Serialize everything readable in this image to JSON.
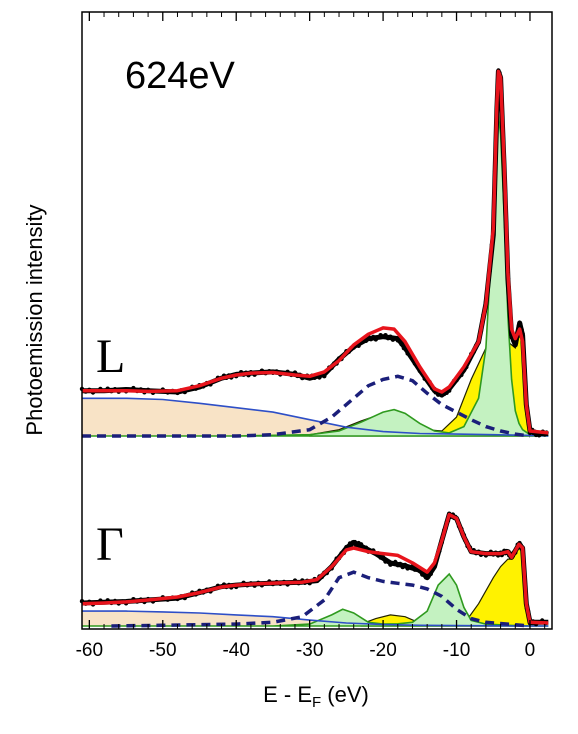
{
  "chart_data": {
    "type": "line",
    "title": "",
    "xlabel_main": "E - E",
    "xlabel_sub": "F",
    "xlabel_unit": " (eV)",
    "ylabel": "Photoemission intensity",
    "annotation": "624eV",
    "xlim": [
      -61,
      3
    ],
    "xticks": [
      -60,
      -50,
      -40,
      -30,
      -20,
      -10,
      0
    ],
    "xtick_labels": [
      "-60",
      "-50",
      "-40",
      "-30",
      "-20",
      "-10",
      "0"
    ],
    "grid": false,
    "colors": {
      "fit": "#e8141c",
      "data": "#000000",
      "dashed": "#1b1f7a",
      "background": "#2e4fc7",
      "background_fill": "#f8e3c6",
      "green_line": "#2f9a1f",
      "green_fill": "#c4f2c1",
      "yellow_fill": "#fff200",
      "yellow_line": "#222200"
    },
    "panels": [
      {
        "label": "L",
        "ylim": [
          0,
          6.3
        ],
        "data": [
          [
            -61,
            0.72
          ],
          [
            -58,
            0.72
          ],
          [
            -55,
            0.74
          ],
          [
            -52,
            0.72
          ],
          [
            -48,
            0.7
          ],
          [
            -45,
            0.78
          ],
          [
            -42,
            0.92
          ],
          [
            -40,
            0.98
          ],
          [
            -38,
            1.0
          ],
          [
            -35,
            1.02
          ],
          [
            -32,
            0.98
          ],
          [
            -30,
            0.92
          ],
          [
            -28,
            0.98
          ],
          [
            -26,
            1.22
          ],
          [
            -24,
            1.42
          ],
          [
            -22,
            1.55
          ],
          [
            -20,
            1.58
          ],
          [
            -18,
            1.55
          ],
          [
            -17,
            1.4
          ],
          [
            -15,
            1.05
          ],
          [
            -13,
            0.72
          ],
          [
            -12,
            0.65
          ],
          [
            -11,
            0.75
          ],
          [
            -9,
            1.05
          ],
          [
            -7,
            1.5
          ],
          [
            -6,
            2.1
          ],
          [
            -5,
            3.2
          ],
          [
            -4.5,
            5.2
          ],
          [
            -4.3,
            5.8
          ],
          [
            -4,
            5.7
          ],
          [
            -3.5,
            4.2
          ],
          [
            -3,
            2.5
          ],
          [
            -2.5,
            1.6
          ],
          [
            -2,
            1.45
          ],
          [
            -1.4,
            1.8
          ],
          [
            -1,
            1.6
          ],
          [
            -0.5,
            0.5
          ],
          [
            0,
            0.08
          ],
          [
            1,
            0.04
          ],
          [
            2.5,
            0.04
          ]
        ],
        "fit": [
          [
            -61,
            0.72
          ],
          [
            -58,
            0.72
          ],
          [
            -55,
            0.72
          ],
          [
            -52,
            0.71
          ],
          [
            -48,
            0.72
          ],
          [
            -45,
            0.8
          ],
          [
            -42,
            0.92
          ],
          [
            -40,
            0.97
          ],
          [
            -38,
            1.0
          ],
          [
            -35,
            1.01
          ],
          [
            -32,
            0.97
          ],
          [
            -30,
            0.95
          ],
          [
            -28,
            1.02
          ],
          [
            -26,
            1.2
          ],
          [
            -24,
            1.45
          ],
          [
            -22,
            1.62
          ],
          [
            -20,
            1.72
          ],
          [
            -18.5,
            1.7
          ],
          [
            -17,
            1.5
          ],
          [
            -15,
            1.1
          ],
          [
            -13,
            0.75
          ],
          [
            -12,
            0.7
          ],
          [
            -11,
            0.78
          ],
          [
            -9,
            1.1
          ],
          [
            -7,
            1.5
          ],
          [
            -6,
            2.1
          ],
          [
            -5,
            3.3
          ],
          [
            -4.5,
            5.3
          ],
          [
            -4.3,
            5.8
          ],
          [
            -4,
            5.7
          ],
          [
            -3.5,
            4.3
          ],
          [
            -3,
            2.6
          ],
          [
            -2.5,
            1.7
          ],
          [
            -2,
            1.55
          ],
          [
            -1.4,
            1.7
          ],
          [
            -1,
            1.5
          ],
          [
            -0.5,
            0.5
          ],
          [
            0,
            0.08
          ],
          [
            2.5,
            0.05
          ]
        ],
        "background": [
          [
            -61,
            0.6
          ],
          [
            -55,
            0.6
          ],
          [
            -50,
            0.58
          ],
          [
            -45,
            0.52
          ],
          [
            -40,
            0.45
          ],
          [
            -35,
            0.38
          ],
          [
            -30,
            0.26
          ],
          [
            -25,
            0.14
          ],
          [
            -20,
            0.07
          ],
          [
            -15,
            0.04
          ],
          [
            -10,
            0.03
          ],
          [
            -5,
            0.02
          ],
          [
            0,
            0.01
          ],
          [
            2.5,
            0.0
          ]
        ],
        "dashed": [
          [
            -61,
            0.0
          ],
          [
            -50,
            0.0
          ],
          [
            -40,
            0.0
          ],
          [
            -35,
            0.02
          ],
          [
            -30,
            0.1
          ],
          [
            -27,
            0.3
          ],
          [
            -24,
            0.6
          ],
          [
            -22,
            0.8
          ],
          [
            -20,
            0.9
          ],
          [
            -18,
            0.95
          ],
          [
            -16,
            0.88
          ],
          [
            -14,
            0.68
          ],
          [
            -12,
            0.5
          ],
          [
            -10,
            0.38
          ],
          [
            -8,
            0.26
          ],
          [
            -6,
            0.15
          ],
          [
            -4,
            0.08
          ],
          [
            -2,
            0.03
          ],
          [
            0,
            0.0
          ]
        ],
        "green": [
          [
            -61,
            0.0
          ],
          [
            -40,
            0.0
          ],
          [
            -30,
            0.02
          ],
          [
            -26,
            0.08
          ],
          [
            -23,
            0.22
          ],
          [
            -20,
            0.38
          ],
          [
            -18.5,
            0.42
          ],
          [
            -17,
            0.36
          ],
          [
            -15,
            0.2
          ],
          [
            -13,
            0.08
          ],
          [
            -11,
            0.05
          ],
          [
            -9,
            0.15
          ],
          [
            -7,
            0.6
          ],
          [
            -6,
            1.4
          ],
          [
            -5,
            3.5
          ],
          [
            -4.4,
            5.2
          ],
          [
            -4,
            4.8
          ],
          [
            -3.5,
            3.5
          ],
          [
            -3,
            1.9
          ],
          [
            -2.5,
            0.9
          ],
          [
            -2,
            0.4
          ],
          [
            -1.5,
            0.2
          ],
          [
            -1,
            0.1
          ],
          [
            0,
            0.02
          ],
          [
            2.5,
            0.0
          ]
        ],
        "yellow": [
          [
            -30,
            0.02
          ],
          [
            -26,
            0.1
          ],
          [
            -23,
            0.24
          ],
          [
            -20,
            0.36
          ],
          [
            -18,
            0.34
          ],
          [
            -16,
            0.22
          ],
          [
            -14,
            0.1
          ],
          [
            -12,
            0.08
          ],
          [
            -10,
            0.3
          ],
          [
            -8,
            0.9
          ],
          [
            -6,
            1.4
          ],
          [
            -5,
            1.6
          ],
          [
            -4,
            1.6
          ],
          [
            -3,
            1.5
          ],
          [
            -2,
            1.4
          ],
          [
            -1.5,
            1.6
          ],
          [
            -1,
            1.5
          ],
          [
            -0.5,
            0.5
          ],
          [
            0,
            0.05
          ],
          [
            1,
            0.0
          ]
        ]
      },
      {
        "label": "Γ",
        "ylim": [
          0,
          4.9
        ],
        "data": [
          [
            -61,
            0.62
          ],
          [
            -58,
            0.64
          ],
          [
            -55,
            0.66
          ],
          [
            -52,
            0.7
          ],
          [
            -48,
            0.75
          ],
          [
            -45,
            0.9
          ],
          [
            -42,
            1.06
          ],
          [
            -40,
            1.1
          ],
          [
            -37,
            1.14
          ],
          [
            -34,
            1.16
          ],
          [
            -31,
            1.18
          ],
          [
            -29,
            1.22
          ],
          [
            -27,
            1.6
          ],
          [
            -25,
            2.1
          ],
          [
            -24,
            2.25
          ],
          [
            -23,
            2.15
          ],
          [
            -21,
            1.95
          ],
          [
            -19,
            1.7
          ],
          [
            -17,
            1.62
          ],
          [
            -15,
            1.5
          ],
          [
            -14,
            1.3
          ],
          [
            -13,
            1.6
          ],
          [
            -12,
            2.3
          ],
          [
            -11,
            3.0
          ],
          [
            -10,
            2.9
          ],
          [
            -9,
            2.4
          ],
          [
            -8,
            2.0
          ],
          [
            -6,
            1.95
          ],
          [
            -4,
            1.95
          ],
          [
            -3,
            2.0
          ],
          [
            -2.5,
            1.85
          ],
          [
            -1.5,
            2.2
          ],
          [
            -1,
            2.1
          ],
          [
            -0.5,
            0.6
          ],
          [
            0,
            0.1
          ],
          [
            2.5,
            0.1
          ]
        ],
        "fit": [
          [
            -61,
            0.6
          ],
          [
            -58,
            0.62
          ],
          [
            -55,
            0.65
          ],
          [
            -52,
            0.7
          ],
          [
            -48,
            0.78
          ],
          [
            -45,
            0.9
          ],
          [
            -42,
            1.05
          ],
          [
            -40,
            1.1
          ],
          [
            -37,
            1.14
          ],
          [
            -34,
            1.16
          ],
          [
            -31,
            1.18
          ],
          [
            -29,
            1.25
          ],
          [
            -27,
            1.6
          ],
          [
            -25,
            2.05
          ],
          [
            -24,
            2.1
          ],
          [
            -22,
            2.0
          ],
          [
            -20,
            1.95
          ],
          [
            -18,
            1.9
          ],
          [
            -16,
            1.7
          ],
          [
            -14,
            1.45
          ],
          [
            -13,
            1.7
          ],
          [
            -12,
            2.3
          ],
          [
            -11,
            3.0
          ],
          [
            -10,
            2.9
          ],
          [
            -9,
            2.4
          ],
          [
            -8,
            2.0
          ],
          [
            -6,
            1.95
          ],
          [
            -4,
            1.95
          ],
          [
            -3,
            2.0
          ],
          [
            -2.5,
            1.85
          ],
          [
            -1.5,
            2.2
          ],
          [
            -1,
            2.1
          ],
          [
            -0.5,
            0.6
          ],
          [
            0,
            0.1
          ],
          [
            2.5,
            0.08
          ]
        ],
        "background": [
          [
            -61,
            0.4
          ],
          [
            -55,
            0.4
          ],
          [
            -50,
            0.38
          ],
          [
            -45,
            0.35
          ],
          [
            -40,
            0.3
          ],
          [
            -35,
            0.25
          ],
          [
            -30,
            0.16
          ],
          [
            -25,
            0.08
          ],
          [
            -20,
            0.04
          ],
          [
            -15,
            0.02
          ],
          [
            -10,
            0.01
          ],
          [
            0,
            0.0
          ],
          [
            2.5,
            0.0
          ]
        ],
        "dashed": [
          [
            -57,
            0.0
          ],
          [
            -50,
            0.02
          ],
          [
            -40,
            0.05
          ],
          [
            -35,
            0.1
          ],
          [
            -31,
            0.25
          ],
          [
            -28,
            0.7
          ],
          [
            -26,
            1.3
          ],
          [
            -24,
            1.45
          ],
          [
            -22,
            1.3
          ],
          [
            -20,
            1.2
          ],
          [
            -18,
            1.15
          ],
          [
            -16,
            1.1
          ],
          [
            -14,
            1.0
          ],
          [
            -12,
            0.8
          ],
          [
            -10,
            0.45
          ],
          [
            -8,
            0.2
          ],
          [
            -6,
            0.1
          ],
          [
            -3,
            0.05
          ],
          [
            0,
            0.0
          ]
        ],
        "green": [
          [
            -61,
            0.0
          ],
          [
            -35,
            0.0
          ],
          [
            -30,
            0.05
          ],
          [
            -27,
            0.3
          ],
          [
            -25.5,
            0.45
          ],
          [
            -24,
            0.35
          ],
          [
            -22,
            0.1
          ],
          [
            -20,
            0.05
          ],
          [
            -18,
            0.06
          ],
          [
            -16,
            0.1
          ],
          [
            -14,
            0.4
          ],
          [
            -12.5,
            1.1
          ],
          [
            -11,
            1.4
          ],
          [
            -10,
            1.1
          ],
          [
            -9,
            0.5
          ],
          [
            -8,
            0.15
          ],
          [
            -6,
            0.05
          ],
          [
            -3,
            0.02
          ],
          [
            0,
            0.0
          ],
          [
            2.5,
            0.0
          ]
        ],
        "yellow": [
          [
            -23,
            0.05
          ],
          [
            -21,
            0.2
          ],
          [
            -19,
            0.3
          ],
          [
            -17,
            0.25
          ],
          [
            -15,
            0.08
          ],
          [
            -13,
            0.02
          ],
          [
            -9,
            0.05
          ],
          [
            -7,
            0.6
          ],
          [
            -5,
            1.3
          ],
          [
            -4,
            1.6
          ],
          [
            -3,
            1.8
          ],
          [
            -2.5,
            1.8
          ],
          [
            -1.5,
            2.1
          ],
          [
            -1,
            2.0
          ],
          [
            -0.5,
            0.6
          ],
          [
            0,
            0.05
          ],
          [
            1,
            0.0
          ]
        ]
      }
    ]
  }
}
